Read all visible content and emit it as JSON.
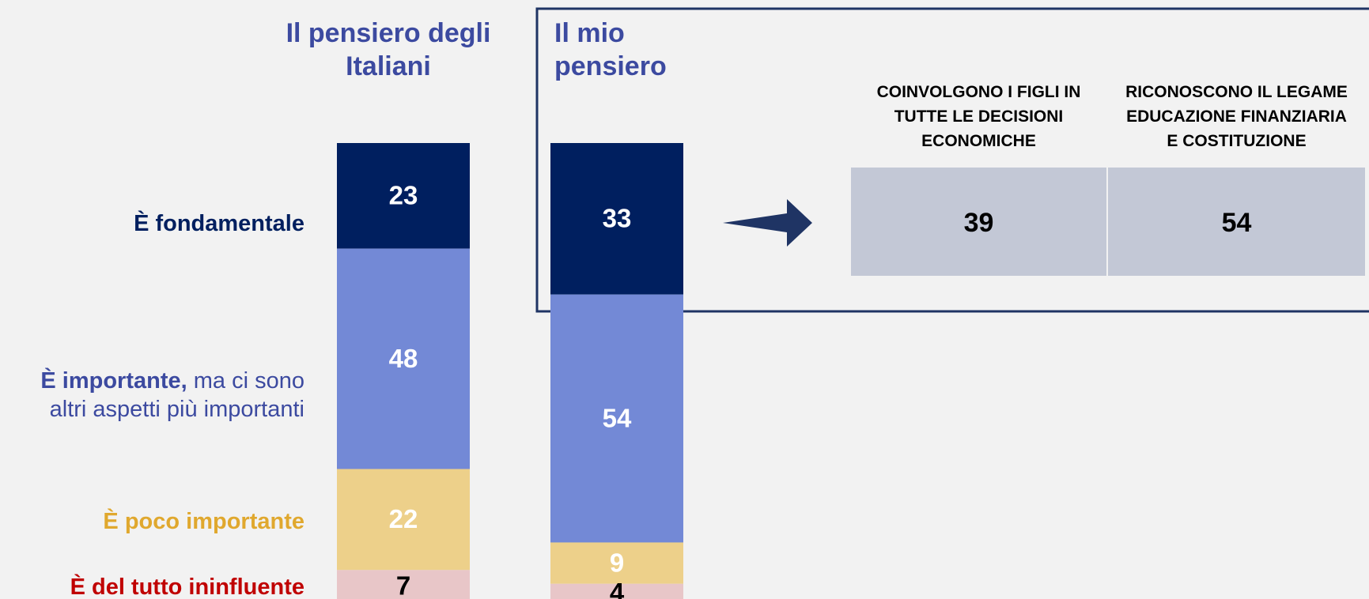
{
  "chart_data": {
    "type": "stacked_bar",
    "categories": [
      "Il pensiero degli Italiani",
      "Il mio pensiero"
    ],
    "series": [
      {
        "name": "È fondamentale",
        "color": "#001f5f",
        "label_color": "#ffffff",
        "name_color": "#001f5f",
        "values": [
          23,
          33
        ]
      },
      {
        "name": "È importante, ma ci sono altri aspetti più importanti",
        "color": "#7389d6",
        "label_color": "#ffffff",
        "name_color": "#3c4aa0",
        "values": [
          48,
          54
        ]
      },
      {
        "name": "È poco importante",
        "color": "#edd08a",
        "label_color": "#ffffff",
        "name_color": "#e0a82e",
        "values": [
          22,
          9
        ]
      },
      {
        "name": "È del tutto ininfluente",
        "color": "#e8c6c8",
        "label_color": "#000000",
        "name_color": "#c00000",
        "values": [
          7,
          4
        ]
      }
    ],
    "ylim": [
      0,
      100
    ]
  },
  "table": {
    "headers": [
      "COINVOLGONO I FIGLI IN TUTTE LE DECISIONI ECONOMICHE",
      "RICONOSCONO IL LEGAME EDUCAZIONE FINANZIARIA E COSTITUZIONE"
    ],
    "rows": [
      [
        39,
        54
      ]
    ]
  }
}
